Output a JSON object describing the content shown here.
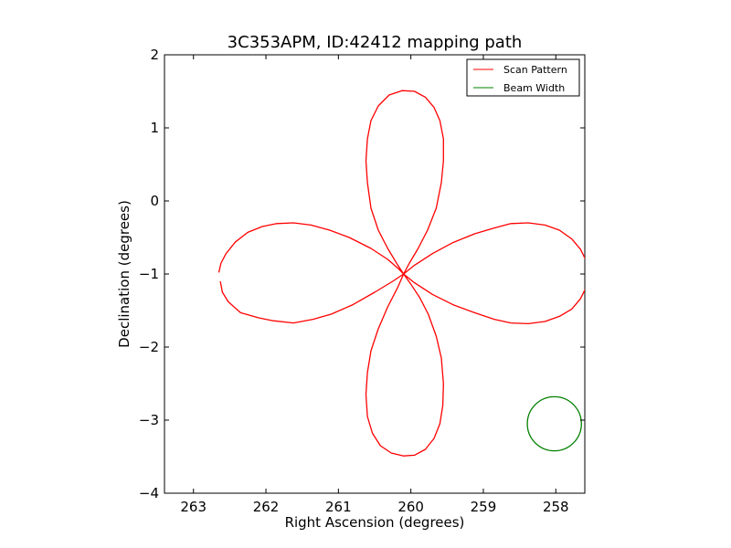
{
  "chart_data": {
    "type": "line",
    "title": "3C353APM, ID:42412 mapping path",
    "xlabel": "Right Ascension (degrees)",
    "ylabel": "Declination (degrees)",
    "xlim": [
      263.4,
      257.6
    ],
    "ylim": [
      -4,
      2
    ],
    "xticks": [
      263,
      262,
      261,
      260,
      259,
      258
    ],
    "yticks": [
      -4,
      -3,
      -2,
      -1,
      0,
      1,
      2
    ],
    "grid": false,
    "legend_position": "top-right",
    "series": [
      {
        "name": "Scan Pattern",
        "color": "#ff0000",
        "points": [
          [
            262.65,
            -0.98
          ],
          [
            262.62,
            -0.85
          ],
          [
            262.55,
            -0.72
          ],
          [
            262.42,
            -0.56
          ],
          [
            262.25,
            -0.43
          ],
          [
            262.05,
            -0.35
          ],
          [
            261.85,
            -0.31
          ],
          [
            261.62,
            -0.3
          ],
          [
            261.38,
            -0.33
          ],
          [
            261.12,
            -0.4
          ],
          [
            260.85,
            -0.5
          ],
          [
            260.55,
            -0.65
          ],
          [
            260.32,
            -0.8
          ],
          [
            260.18,
            -0.92
          ],
          [
            260.1,
            -1.0
          ],
          [
            260.18,
            -0.88
          ],
          [
            260.32,
            -0.65
          ],
          [
            260.45,
            -0.4
          ],
          [
            260.55,
            -0.1
          ],
          [
            260.6,
            0.25
          ],
          [
            260.62,
            0.55
          ],
          [
            260.6,
            0.85
          ],
          [
            260.55,
            1.1
          ],
          [
            260.45,
            1.3
          ],
          [
            260.3,
            1.45
          ],
          [
            260.12,
            1.51
          ],
          [
            259.95,
            1.5
          ],
          [
            259.8,
            1.42
          ],
          [
            259.68,
            1.28
          ],
          [
            259.6,
            1.1
          ],
          [
            259.55,
            0.85
          ],
          [
            259.55,
            0.55
          ],
          [
            259.58,
            0.25
          ],
          [
            259.65,
            -0.1
          ],
          [
            259.77,
            -0.4
          ],
          [
            259.9,
            -0.65
          ],
          [
            260.02,
            -0.85
          ],
          [
            260.1,
            -1.0
          ],
          [
            259.95,
            -0.88
          ],
          [
            259.7,
            -0.72
          ],
          [
            259.42,
            -0.57
          ],
          [
            259.12,
            -0.45
          ],
          [
            258.85,
            -0.37
          ],
          [
            258.62,
            -0.31
          ],
          [
            258.38,
            -0.3
          ],
          [
            258.15,
            -0.33
          ],
          [
            257.95,
            -0.4
          ],
          [
            257.78,
            -0.52
          ],
          [
            257.66,
            -0.66
          ],
          [
            257.58,
            -0.82
          ],
          [
            257.56,
            -1.0
          ],
          [
            257.58,
            -1.18
          ],
          [
            257.66,
            -1.34
          ],
          [
            257.78,
            -1.48
          ],
          [
            257.95,
            -1.58
          ],
          [
            258.15,
            -1.65
          ],
          [
            258.38,
            -1.68
          ],
          [
            258.62,
            -1.67
          ],
          [
            258.85,
            -1.62
          ],
          [
            259.12,
            -1.53
          ],
          [
            259.42,
            -1.42
          ],
          [
            259.7,
            -1.28
          ],
          [
            259.95,
            -1.12
          ],
          [
            260.1,
            -1.0
          ],
          [
            260.0,
            -1.14
          ],
          [
            259.88,
            -1.32
          ],
          [
            259.76,
            -1.55
          ],
          [
            259.65,
            -1.85
          ],
          [
            259.58,
            -2.15
          ],
          [
            259.55,
            -2.5
          ],
          [
            259.56,
            -2.8
          ],
          [
            259.6,
            -3.05
          ],
          [
            259.68,
            -3.25
          ],
          [
            259.8,
            -3.4
          ],
          [
            259.95,
            -3.48
          ],
          [
            260.1,
            -3.49
          ],
          [
            260.27,
            -3.45
          ],
          [
            260.42,
            -3.35
          ],
          [
            260.53,
            -3.18
          ],
          [
            260.6,
            -2.95
          ],
          [
            260.62,
            -2.65
          ],
          [
            260.6,
            -2.35
          ],
          [
            260.55,
            -2.05
          ],
          [
            260.45,
            -1.75
          ],
          [
            260.32,
            -1.45
          ],
          [
            260.18,
            -1.18
          ],
          [
            260.1,
            -1.0
          ],
          [
            260.25,
            -1.1
          ],
          [
            260.5,
            -1.25
          ],
          [
            260.8,
            -1.42
          ],
          [
            261.1,
            -1.55
          ],
          [
            261.35,
            -1.62
          ],
          [
            261.62,
            -1.67
          ],
          [
            261.9,
            -1.64
          ],
          [
            262.1,
            -1.6
          ],
          [
            262.35,
            -1.53
          ],
          [
            262.52,
            -1.38
          ],
          [
            262.6,
            -1.25
          ],
          [
            262.63,
            -1.1
          ]
        ]
      },
      {
        "name": "Beam Width",
        "color": "#008000",
        "shape": "circle",
        "center": [
          258.02,
          -3.05
        ],
        "radius_deg": 0.37
      }
    ]
  }
}
